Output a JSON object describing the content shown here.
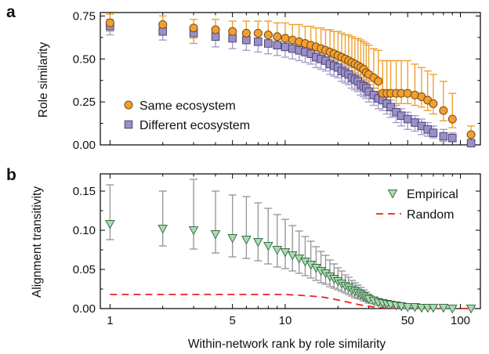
{
  "figure": {
    "xlabel": "Within-network rank by role similarity"
  },
  "chart_data": [
    {
      "panel": "a",
      "type": "scatter",
      "xlabel": "Within-network rank by role similarity",
      "ylabel": "Role similarity",
      "xscale": "log",
      "xlim": [
        0.88,
        130
      ],
      "ylim": [
        0.0,
        0.77
      ],
      "xticks": [
        1,
        5,
        10,
        50,
        100
      ],
      "yticks": [
        0.0,
        0.25,
        0.5,
        0.75
      ],
      "ytick_labels": [
        "0.00",
        "0.25",
        "0.50",
        "0.75"
      ],
      "legend_position": "lower-left",
      "series": [
        {
          "name": "Same ecosystem",
          "color": "#f0a030",
          "marker": "circle",
          "x": [
            1,
            2,
            3,
            4,
            5,
            6,
            7,
            8,
            9,
            10,
            11,
            12,
            13,
            14,
            15,
            16,
            17,
            18,
            19,
            20,
            21,
            22,
            23,
            24,
            25,
            26,
            27,
            28,
            29,
            30,
            32,
            34,
            36,
            38,
            40,
            43,
            46,
            50,
            55,
            60,
            65,
            70,
            80,
            90,
            115
          ],
          "y": [
            0.71,
            0.7,
            0.68,
            0.67,
            0.66,
            0.65,
            0.65,
            0.64,
            0.63,
            0.62,
            0.61,
            0.6,
            0.59,
            0.58,
            0.57,
            0.56,
            0.55,
            0.54,
            0.53,
            0.52,
            0.51,
            0.5,
            0.49,
            0.48,
            0.47,
            0.46,
            0.45,
            0.44,
            0.42,
            0.41,
            0.39,
            0.37,
            0.3,
            0.3,
            0.3,
            0.3,
            0.3,
            0.3,
            0.29,
            0.28,
            0.26,
            0.24,
            0.2,
            0.15,
            0.06
          ],
          "err_low": [
            0.05,
            0.06,
            0.06,
            0.06,
            0.06,
            0.06,
            0.06,
            0.06,
            0.06,
            0.06,
            0.06,
            0.06,
            0.06,
            0.06,
            0.06,
            0.06,
            0.06,
            0.06,
            0.06,
            0.06,
            0.06,
            0.06,
            0.06,
            0.06,
            0.06,
            0.06,
            0.06,
            0.06,
            0.06,
            0.06,
            0.06,
            0.06,
            0.06,
            0.06,
            0.06,
            0.06,
            0.06,
            0.06,
            0.06,
            0.06,
            0.06,
            0.06,
            0.06,
            0.05,
            0.05
          ],
          "err_high": [
            0.05,
            0.05,
            0.05,
            0.06,
            0.06,
            0.07,
            0.07,
            0.08,
            0.08,
            0.09,
            0.09,
            0.1,
            0.1,
            0.11,
            0.11,
            0.12,
            0.12,
            0.13,
            0.13,
            0.14,
            0.14,
            0.14,
            0.15,
            0.15,
            0.15,
            0.16,
            0.16,
            0.16,
            0.17,
            0.17,
            0.17,
            0.18,
            0.19,
            0.19,
            0.19,
            0.19,
            0.19,
            0.19,
            0.18,
            0.17,
            0.17,
            0.17,
            0.17,
            0.15,
            0.05
          ]
        },
        {
          "name": "Different ecosystem",
          "color": "#9b8fc7",
          "marker": "square",
          "x": [
            1,
            2,
            3,
            4,
            5,
            6,
            7,
            8,
            9,
            10,
            11,
            12,
            13,
            14,
            15,
            16,
            17,
            18,
            19,
            20,
            21,
            22,
            23,
            24,
            25,
            26,
            27,
            28,
            29,
            30,
            32,
            34,
            36,
            38,
            40,
            43,
            46,
            50,
            55,
            60,
            65,
            70,
            80,
            90,
            115
          ],
          "y": [
            0.69,
            0.66,
            0.65,
            0.63,
            0.62,
            0.61,
            0.6,
            0.59,
            0.58,
            0.57,
            0.56,
            0.55,
            0.54,
            0.53,
            0.51,
            0.5,
            0.49,
            0.47,
            0.46,
            0.45,
            0.43,
            0.42,
            0.41,
            0.39,
            0.38,
            0.37,
            0.35,
            0.34,
            0.33,
            0.31,
            0.29,
            0.27,
            0.26,
            0.24,
            0.22,
            0.19,
            0.17,
            0.15,
            0.13,
            0.11,
            0.09,
            0.07,
            0.05,
            0.04,
            0.01
          ],
          "err_low": [
            0.05,
            0.05,
            0.06,
            0.06,
            0.06,
            0.06,
            0.06,
            0.06,
            0.06,
            0.06,
            0.06,
            0.06,
            0.06,
            0.06,
            0.06,
            0.06,
            0.06,
            0.06,
            0.06,
            0.06,
            0.06,
            0.06,
            0.06,
            0.06,
            0.06,
            0.06,
            0.06,
            0.06,
            0.06,
            0.06,
            0.06,
            0.06,
            0.06,
            0.06,
            0.06,
            0.06,
            0.06,
            0.06,
            0.05,
            0.05,
            0.04,
            0.03,
            0.03,
            0.02,
            0.01
          ],
          "err_high": [
            0.04,
            0.04,
            0.04,
            0.04,
            0.04,
            0.04,
            0.04,
            0.04,
            0.04,
            0.04,
            0.04,
            0.04,
            0.04,
            0.04,
            0.04,
            0.04,
            0.04,
            0.04,
            0.04,
            0.04,
            0.04,
            0.04,
            0.04,
            0.04,
            0.04,
            0.04,
            0.04,
            0.04,
            0.04,
            0.04,
            0.04,
            0.04,
            0.04,
            0.04,
            0.04,
            0.04,
            0.04,
            0.04,
            0.04,
            0.04,
            0.04,
            0.04,
            0.04,
            0.03,
            0.02
          ]
        }
      ]
    },
    {
      "panel": "b",
      "type": "scatter",
      "xlabel": "Within-network rank by role similarity",
      "ylabel": "Alignment transitivity",
      "xscale": "log",
      "xlim": [
        0.88,
        130
      ],
      "ylim": [
        0.0,
        0.172
      ],
      "xticks": [
        1,
        5,
        10,
        50,
        100
      ],
      "xtick_labels": [
        "1",
        "5",
        "10",
        "50",
        "100"
      ],
      "yticks": [
        0.0,
        0.05,
        0.1,
        0.15
      ],
      "ytick_labels": [
        "0.00",
        "0.05",
        "0.10",
        "0.15"
      ],
      "legend_position": "top-right",
      "series": [
        {
          "name": "Empirical",
          "color": "#a8dcb0",
          "marker": "triangle-down",
          "x": [
            1,
            2,
            3,
            4,
            5,
            6,
            7,
            8,
            9,
            10,
            11,
            12,
            13,
            14,
            15,
            16,
            17,
            18,
            19,
            20,
            21,
            22,
            23,
            24,
            25,
            26,
            27,
            28,
            29,
            30,
            32,
            34,
            36,
            38,
            40,
            43,
            46,
            50,
            55,
            60,
            65,
            70,
            80,
            90,
            115
          ],
          "y": [
            0.108,
            0.102,
            0.1,
            0.095,
            0.09,
            0.088,
            0.085,
            0.08,
            0.075,
            0.072,
            0.068,
            0.064,
            0.06,
            0.056,
            0.052,
            0.048,
            0.045,
            0.041,
            0.038,
            0.035,
            0.032,
            0.029,
            0.027,
            0.024,
            0.022,
            0.02,
            0.018,
            0.016,
            0.014,
            0.012,
            0.01,
            0.008,
            0.007,
            0.006,
            0.005,
            0.004,
            0.003,
            0.002,
            0.002,
            0.001,
            0.001,
            0.001,
            0.001,
            0.0,
            0.0
          ],
          "err_low": [
            0.02,
            0.022,
            0.024,
            0.024,
            0.024,
            0.024,
            0.024,
            0.023,
            0.022,
            0.021,
            0.02,
            0.019,
            0.018,
            0.017,
            0.016,
            0.015,
            0.014,
            0.013,
            0.012,
            0.011,
            0.01,
            0.009,
            0.009,
            0.008,
            0.008,
            0.007,
            0.006,
            0.006,
            0.005,
            0.005,
            0.004,
            0.004,
            0.003,
            0.003,
            0.002,
            0.002,
            0.002,
            0.001,
            0.001,
            0.001,
            0.001,
            0.001,
            0.001,
            0.0,
            0.0
          ],
          "err_high": [
            0.05,
            0.048,
            0.065,
            0.055,
            0.055,
            0.055,
            0.05,
            0.048,
            0.045,
            0.042,
            0.038,
            0.035,
            0.032,
            0.03,
            0.027,
            0.025,
            0.023,
            0.021,
            0.019,
            0.017,
            0.016,
            0.014,
            0.013,
            0.012,
            0.011,
            0.01,
            0.009,
            0.008,
            0.007,
            0.006,
            0.005,
            0.005,
            0.004,
            0.004,
            0.003,
            0.003,
            0.002,
            0.002,
            0.002,
            0.001,
            0.001,
            0.001,
            0.001,
            0.001,
            0.001
          ]
        },
        {
          "name": "Random",
          "color": "#e8231f",
          "line_style": "dashed",
          "x": [
            1,
            2,
            3,
            4,
            5,
            6,
            8,
            10,
            12,
            14,
            16,
            18,
            20,
            22,
            25,
            28,
            32,
            36,
            40,
            50,
            60,
            80,
            100,
            115
          ],
          "y": [
            0.018,
            0.018,
            0.018,
            0.018,
            0.018,
            0.018,
            0.018,
            0.018,
            0.017,
            0.016,
            0.015,
            0.013,
            0.011,
            0.009,
            0.006,
            0.004,
            0.002,
            0.001,
            0.0005,
            0.0002,
            0.0001,
            0.0,
            0.0,
            0.0
          ]
        }
      ]
    }
  ]
}
